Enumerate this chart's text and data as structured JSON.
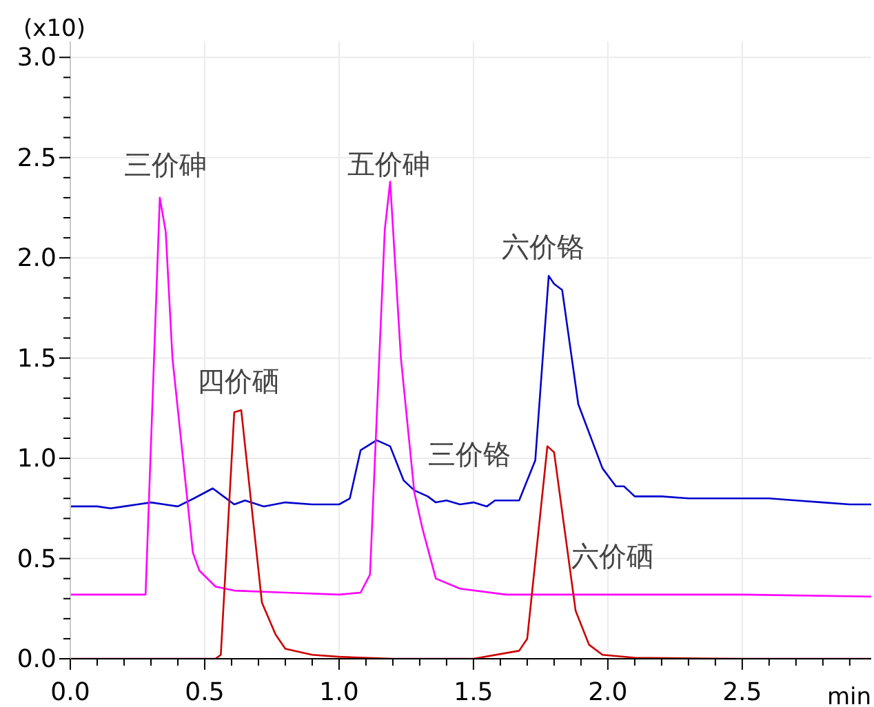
{
  "chart_data": {
    "type": "line",
    "xlabel": "min",
    "ylabel": "(x10)",
    "grid": true,
    "legend": false,
    "marker": "none",
    "line_style": "solid",
    "xlim": [
      0,
      2.98
    ],
    "ylim": [
      0,
      3.08
    ],
    "xticks": [
      {
        "value": 0,
        "label": "0.0"
      },
      {
        "value": 0.1,
        "label": null
      },
      {
        "value": 0.2,
        "label": null
      },
      {
        "value": 0.3,
        "label": null
      },
      {
        "value": 0.4,
        "label": null
      },
      {
        "value": 0.5,
        "label": "0.5"
      },
      {
        "value": 0.6,
        "label": null
      },
      {
        "value": 0.7,
        "label": null
      },
      {
        "value": 0.8,
        "label": null
      },
      {
        "value": 0.9,
        "label": null
      },
      {
        "value": 1,
        "label": "1.0"
      },
      {
        "value": 1.1,
        "label": null
      },
      {
        "value": 1.2,
        "label": null
      },
      {
        "value": 1.3,
        "label": null
      },
      {
        "value": 1.4,
        "label": null
      },
      {
        "value": 1.5,
        "label": "1.5"
      },
      {
        "value": 1.6,
        "label": null
      },
      {
        "value": 1.7,
        "label": null
      },
      {
        "value": 1.8,
        "label": null
      },
      {
        "value": 1.9,
        "label": null
      },
      {
        "value": 2,
        "label": "2.0"
      },
      {
        "value": 2.1,
        "label": null
      },
      {
        "value": 2.2,
        "label": null
      },
      {
        "value": 2.3,
        "label": null
      },
      {
        "value": 2.4,
        "label": null
      },
      {
        "value": 2.5,
        "label": "2.5"
      },
      {
        "value": 2.6,
        "label": null
      },
      {
        "value": 2.7,
        "label": null
      },
      {
        "value": 2.8,
        "label": null
      },
      {
        "value": 2.9,
        "label": null
      }
    ],
    "yticks": [
      {
        "value": 0,
        "label": "0.0"
      },
      {
        "value": 0.1,
        "label": null
      },
      {
        "value": 0.2,
        "label": null
      },
      {
        "value": 0.3,
        "label": null
      },
      {
        "value": 0.4,
        "label": null
      },
      {
        "value": 0.5,
        "label": "0.5"
      },
      {
        "value": 0.6,
        "label": null
      },
      {
        "value": 0.7,
        "label": null
      },
      {
        "value": 0.8,
        "label": null
      },
      {
        "value": 0.9,
        "label": null
      },
      {
        "value": 1,
        "label": "1.0"
      },
      {
        "value": 1.1,
        "label": null
      },
      {
        "value": 1.2,
        "label": null
      },
      {
        "value": 1.3,
        "label": null
      },
      {
        "value": 1.4,
        "label": null
      },
      {
        "value": 1.5,
        "label": "1.5"
      },
      {
        "value": 1.6,
        "label": null
      },
      {
        "value": 1.7,
        "label": null
      },
      {
        "value": 1.8,
        "label": null
      },
      {
        "value": 1.9,
        "label": null
      },
      {
        "value": 2,
        "label": "2.0"
      },
      {
        "value": 2.1,
        "label": null
      },
      {
        "value": 2.2,
        "label": null
      },
      {
        "value": 2.3,
        "label": null
      },
      {
        "value": 2.4,
        "label": null
      },
      {
        "value": 2.5,
        "label": "2.5"
      },
      {
        "value": 2.6,
        "label": null
      },
      {
        "value": 2.7,
        "label": null
      },
      {
        "value": 2.8,
        "label": null
      },
      {
        "value": 2.9,
        "label": null
      },
      {
        "value": 3,
        "label": "3.0"
      }
    ],
    "series": [
      {
        "color": "#0000cc",
        "x": [
          0,
          0.1,
          0.15,
          0.2,
          0.25,
          0.3,
          0.35,
          0.4,
          0.46,
          0.53,
          0.57,
          0.61,
          0.65,
          0.72,
          0.8,
          0.9,
          1.0,
          1.04,
          1.08,
          1.116,
          1.14,
          1.19,
          1.24,
          1.28,
          1.33,
          1.36,
          1.4,
          1.45,
          1.5,
          1.55,
          1.58,
          1.67,
          1.73,
          1.78,
          1.8,
          1.83,
          1.89,
          1.98,
          2.03,
          2.06,
          2.1,
          2.2,
          2.3,
          2.4,
          2.5,
          2.6,
          2.7,
          2.8,
          2.9,
          2.98
        ],
        "values": [
          0.76,
          0.76,
          0.75,
          0.76,
          0.77,
          0.78,
          0.77,
          0.76,
          0.8,
          0.85,
          0.81,
          0.77,
          0.79,
          0.76,
          0.78,
          0.77,
          0.77,
          0.8,
          1.04,
          1.07,
          1.09,
          1.06,
          0.89,
          0.84,
          0.81,
          0.78,
          0.79,
          0.77,
          0.78,
          0.76,
          0.79,
          0.79,
          0.99,
          1.91,
          1.87,
          1.84,
          1.27,
          0.95,
          0.86,
          0.86,
          0.81,
          0.81,
          0.8,
          0.8,
          0.8,
          0.8,
          0.79,
          0.78,
          0.77,
          0.77
        ]
      },
      {
        "color": "#ff00ff",
        "x": [
          0,
          0.28,
          0.333,
          0.355,
          0.38,
          0.456,
          0.48,
          0.54,
          0.61,
          0.8,
          1.0,
          1.08,
          1.115,
          1.17,
          1.19,
          1.23,
          1.28,
          1.31,
          1.36,
          1.45,
          1.62,
          2.0,
          2.5,
          2.98
        ],
        "values": [
          0.32,
          0.32,
          2.3,
          2.13,
          1.5,
          0.53,
          0.44,
          0.36,
          0.34,
          0.33,
          0.32,
          0.33,
          0.42,
          2.14,
          2.38,
          1.5,
          0.83,
          0.65,
          0.4,
          0.35,
          0.32,
          0.32,
          0.32,
          0.31
        ]
      },
      {
        "color": "#cc0000",
        "x": [
          0,
          0.3,
          0.54,
          0.56,
          0.61,
          0.636,
          0.713,
          0.764,
          0.8,
          0.9,
          1.0,
          1.2,
          1.5,
          1.67,
          1.7,
          1.775,
          1.8,
          1.88,
          1.93,
          1.98,
          2.1,
          2.5,
          2.98
        ],
        "values": [
          0,
          0,
          0,
          0.02,
          1.23,
          1.24,
          0.28,
          0.12,
          0.05,
          0.02,
          0.01,
          0,
          0,
          0.04,
          0.1,
          1.06,
          1.03,
          0.24,
          0.07,
          0.02,
          0.005,
          0,
          0
        ]
      }
    ],
    "annotations": [
      {
        "text": "三价砷",
        "x": 0.333,
        "y": 2.3
      },
      {
        "text": "五价砷",
        "x": 1.19,
        "y": 2.38
      },
      {
        "text": "六价铬",
        "x": 1.78,
        "y": 1.91
      },
      {
        "text": "四价硒",
        "x": 0.636,
        "y": 1.24
      },
      {
        "text": "三价铬",
        "x": 1.14,
        "y": 1.09
      },
      {
        "text": "六价硒",
        "x": 1.85,
        "y": 0.52
      }
    ]
  }
}
